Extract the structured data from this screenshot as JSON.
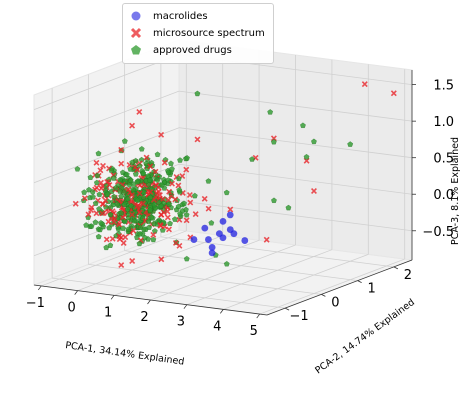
{
  "chart_data": {
    "type": "scatter",
    "projection": "3d",
    "grid": true,
    "legend_placement": "top-center",
    "x_axis": {
      "label": "PCA-1, 34.14% Explained",
      "ticks": [
        "−1",
        "0",
        "1",
        "2",
        "3",
        "4",
        "5"
      ],
      "range": [
        -1.2,
        5.2
      ]
    },
    "y_axis": {
      "label": "PCA-2, 14.74% Explained",
      "ticks": [
        "−1",
        "0",
        "1",
        "2"
      ],
      "range": [
        -1.5,
        2.5
      ]
    },
    "z_axis": {
      "label": "PCA-3, 8.1% Explained",
      "ticks": [
        "−0.5",
        "0.0",
        "0.5",
        "1.0",
        "1.5"
      ],
      "range": [
        -0.9,
        1.7
      ]
    },
    "series": [
      {
        "name": "microsource spectrum",
        "marker": "x",
        "color": "#e8262b",
        "points": [
          [
            -0.3,
            -0.5,
            0.6
          ],
          [
            0.0,
            -0.3,
            0.8
          ],
          [
            0.3,
            0.2,
            0.5
          ],
          [
            -0.5,
            -0.8,
            0.2
          ],
          [
            0.6,
            0.0,
            0.1
          ],
          [
            -0.2,
            0.5,
            -0.1
          ],
          [
            0.9,
            -0.4,
            0.3
          ],
          [
            0.2,
            -0.9,
            -0.3
          ],
          [
            -0.4,
            0.1,
            -0.5
          ],
          [
            0.5,
            0.6,
            0.2
          ],
          [
            1.2,
            0.3,
            -0.2
          ],
          [
            0.0,
            0.9,
            0.4
          ],
          [
            -0.6,
            -0.2,
            0.0
          ],
          [
            0.7,
            -0.7,
            -0.6
          ],
          [
            0.4,
            0.4,
            0.9
          ],
          [
            1.5,
            0.1,
            0.1
          ],
          [
            1.8,
            -0.2,
            -0.3
          ],
          [
            2.3,
            0.4,
            0.0
          ],
          [
            2.6,
            -0.5,
            0.2
          ],
          [
            3.1,
            0.6,
            -0.4
          ],
          [
            4.6,
            1.8,
            1.6
          ],
          [
            4.9,
            2.3,
            1.4
          ],
          [
            3.6,
            1.2,
            0.6
          ],
          [
            2.9,
            1.0,
            0.9
          ],
          [
            4.2,
            0.8,
            0.3
          ],
          [
            1.0,
            0.8,
            0.8
          ],
          [
            0.1,
            -0.1,
            1.1
          ],
          [
            -0.1,
            0.3,
            1.2
          ],
          [
            0.8,
            1.2,
            -0.1
          ],
          [
            2.0,
            1.4,
            0.5
          ],
          [
            0.3,
            -0.6,
            -0.7
          ],
          [
            1.6,
            -0.8,
            -0.5
          ],
          [
            2.2,
            -1.0,
            -0.2
          ],
          [
            0.6,
            -1.1,
            0.0
          ]
        ]
      },
      {
        "name": "approved drugs",
        "marker": "pentagon",
        "color": "#2e9a2e",
        "points": [
          [
            -0.2,
            -0.3,
            0.4
          ],
          [
            0.1,
            0.0,
            0.6
          ],
          [
            0.4,
            0.3,
            0.3
          ],
          [
            -0.4,
            -0.6,
            0.1
          ],
          [
            0.7,
            0.1,
            0.0
          ],
          [
            -0.1,
            0.6,
            -0.2
          ],
          [
            0.8,
            -0.3,
            0.2
          ],
          [
            0.2,
            -0.8,
            -0.4
          ],
          [
            -0.3,
            0.2,
            -0.4
          ],
          [
            0.6,
            0.7,
            0.1
          ],
          [
            1.3,
            0.2,
            -0.1
          ],
          [
            0.1,
            1.0,
            0.3
          ],
          [
            1.9,
            0.2,
            0.4
          ],
          [
            2.4,
            0.9,
            0.6
          ],
          [
            2.7,
            1.2,
            0.8
          ],
          [
            3.2,
            1.5,
            1.0
          ],
          [
            3.5,
            0.4,
            0.2
          ],
          [
            3.9,
            1.1,
            0.9
          ],
          [
            2.1,
            -0.6,
            -0.5
          ],
          [
            2.8,
            -0.2,
            -0.6
          ],
          [
            1.7,
            0.6,
            -0.7
          ],
          [
            3.0,
            1.8,
            0.5
          ],
          [
            4.0,
            2.0,
            0.7
          ],
          [
            1.4,
            -0.4,
            0.6
          ],
          [
            0.5,
            1.3,
            1.3
          ],
          [
            2.5,
            0.1,
            0.3
          ],
          [
            3.4,
            0.9,
            0.0
          ],
          [
            1.1,
            -0.9,
            -0.3
          ],
          [
            0.0,
            -0.2,
            0.9
          ],
          [
            2.2,
            1.6,
            1.1
          ]
        ]
      },
      {
        "name": "macrolides",
        "marker": "o",
        "color": "#2020e0",
        "points": [
          [
            1.6,
            0.4,
            -0.3
          ],
          [
            1.8,
            0.6,
            -0.4
          ],
          [
            2.0,
            0.5,
            -0.2
          ],
          [
            1.7,
            0.8,
            -0.5
          ],
          [
            1.9,
            0.3,
            -0.6
          ],
          [
            2.1,
            0.7,
            -0.4
          ],
          [
            1.5,
            0.6,
            -0.5
          ],
          [
            2.2,
            0.5,
            -0.3
          ],
          [
            1.8,
            0.9,
            -0.2
          ],
          [
            2.0,
            0.2,
            -0.5
          ],
          [
            1.6,
            0.1,
            -0.4
          ],
          [
            2.3,
            0.8,
            -0.5
          ]
        ]
      }
    ],
    "cloud": {
      "center": [
        0.2,
        -0.1,
        0.1
      ],
      "spread": [
        0.75,
        0.7,
        0.45
      ],
      "density": "high"
    }
  }
}
